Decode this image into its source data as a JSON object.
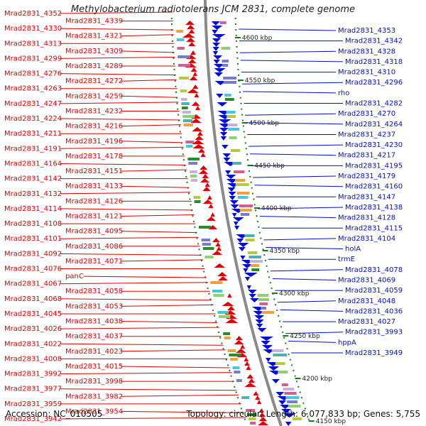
{
  "title": "Methylobacterium radiotolerans JCM 2831, complete genome",
  "footer": {
    "accession": "Accession: NC_010505",
    "topology": "Topology: circular; Length: 6,077,833 bp; Genes: 5,755"
  },
  "colors": {
    "left_strand": "#e00000",
    "right_strand": "#0010cc",
    "backbone": "#8a8a8a",
    "tick_marker": "#1a7a1a"
  },
  "left_labels": [
    "Mrad2831_4352",
    "Mrad2831_4339",
    "Mrad2831_4330",
    "Mrad2831_4321",
    "Mrad2831_4313",
    "Mrad2831_4309",
    "Mrad2831_4299",
    "Mrad2831_4289",
    "Mrad2831_4276",
    "Mrad2831_4272",
    "Mrad2831_4263",
    "Mrad2831_4259",
    "Mrad2831_4247",
    "Mrad2831_4232",
    "Mrad2831_4224",
    "Mrad2831_4216",
    "Mrad2831_4211",
    "Mrad2831_4196",
    "Mrad2831_4191",
    "Mrad2831_4178",
    "Mrad2831_4164",
    "Mrad2831_4151",
    "Mrad2831_4142",
    "Mrad2831_4133",
    "Mrad2831_4132",
    "Mrad2831_4126",
    "Mrad2831_4114",
    "Mrad2831_4121",
    "Mrad2831_4108",
    "Mrad2831_4095",
    "Mrad2831_4101",
    "Mrad2831_4086",
    "Mrad2831_4092",
    "Mrad2831_4071",
    "Mrad2831_4076",
    "panC",
    "Mrad2831_4067",
    "Mrad2831_4058",
    "Mrad2831_4068",
    "Mrad2831_4053",
    "Mrad2831_4045",
    "Mrad2831_4038",
    "Mrad2831_4026",
    "Mrad2831_4037",
    "Mrad2831_4022",
    "Mrad2831_4023",
    "Mrad2831_4008",
    "Mrad2831_4015",
    "Mrad2831_3992",
    "Mrad2831_3998",
    "Mrad2831_3977",
    "Mrad2831_3982",
    "Mrad2831_3959",
    "Mrad2831_3954",
    "Mrad2831_3942"
  ],
  "right_labels": [
    "Mrad2831_4353",
    "Mrad2831_4342",
    "Mrad2831_4328",
    "Mrad2831_4318",
    "Mrad2831_4310",
    "Mrad2831_4296",
    "rho",
    "Mrad2831_4282",
    "Mrad2831_4270",
    "Mrad2831_4264",
    "Mrad2831_4237",
    "Mrad2831_4230",
    "Mrad2831_4217",
    "Mrad2831_4195",
    "Mrad2831_4179",
    "Mrad2831_4160",
    "Mrad2831_4147",
    "Mrad2831_4138",
    "Mrad2831_4128",
    "Mrad2831_4115",
    "Mrad2831_4104",
    "holA",
    "trmE",
    "Mrad2831_4078",
    "Mrad2831_4069",
    "Mrad2831_4059",
    "Mrad2831_4048",
    "Mrad2831_4036",
    "Mrad2831_4027",
    "Mrad2831_3993",
    "hppA",
    "Mrad2831_3949"
  ],
  "scale_labels": [
    "4600 kbp",
    "4550 kbp",
    "4500 kbp",
    "4450 kbp",
    "4400 kbp",
    "4350 kbp",
    "4300 kbp",
    "4250 kbp",
    "4200 kbp",
    "4150 kbp"
  ]
}
